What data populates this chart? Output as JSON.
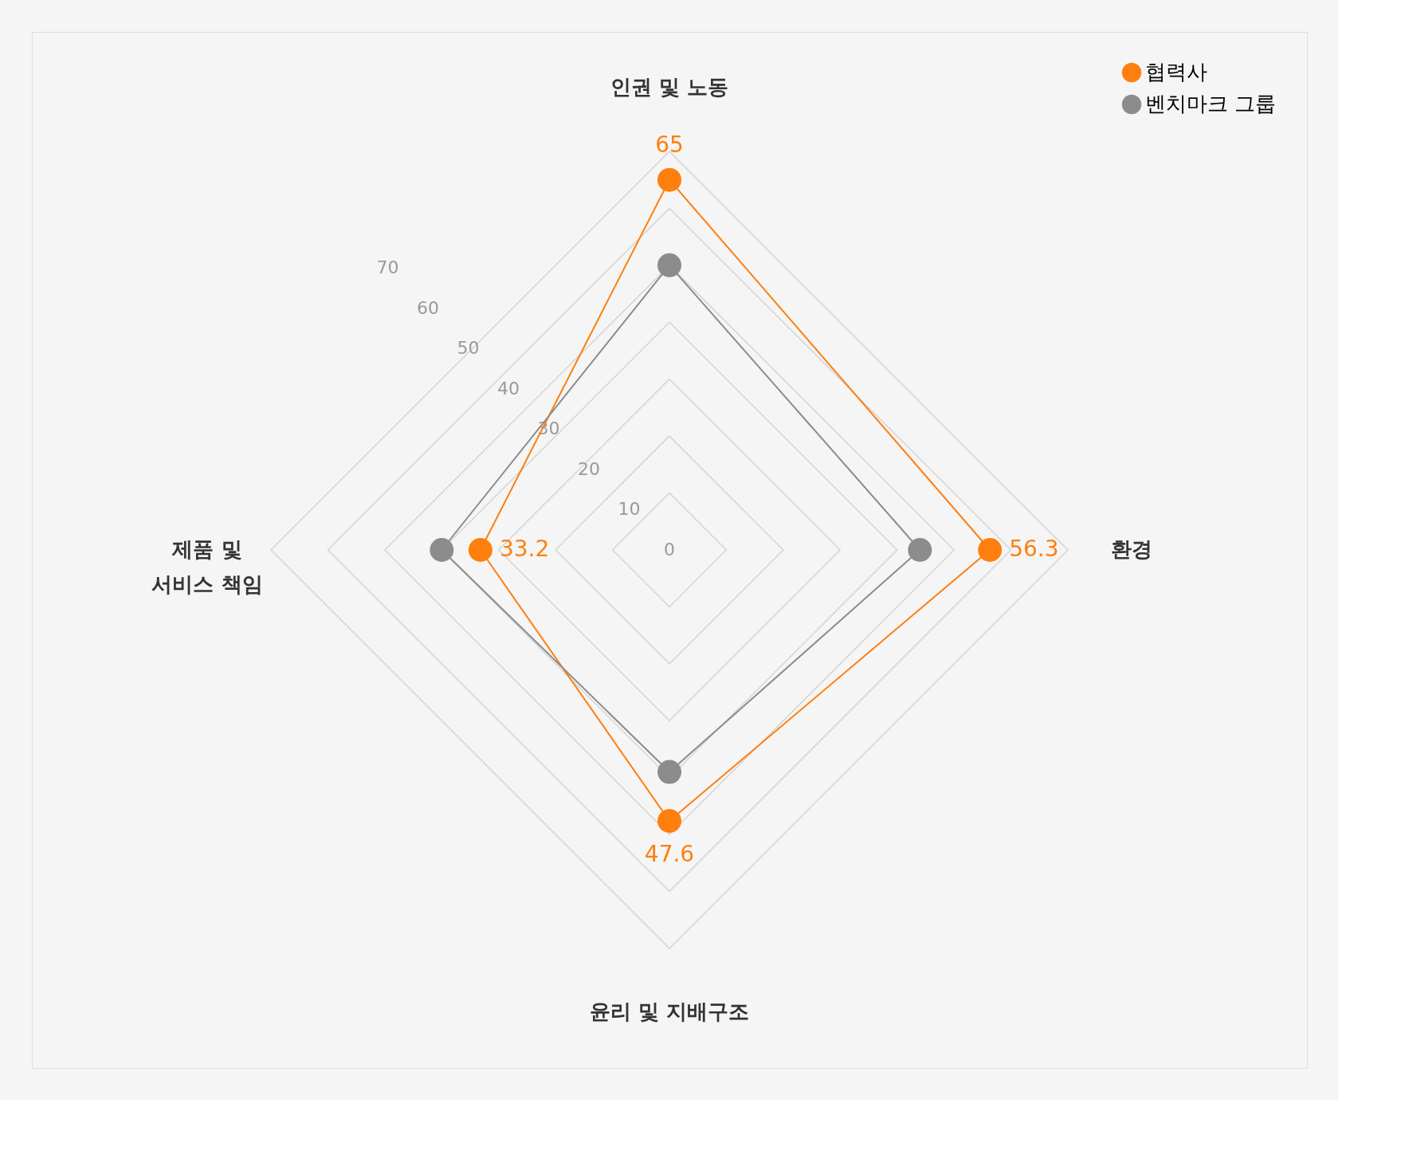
{
  "chart_data": {
    "type": "radar",
    "categories": [
      "인권 및 노동",
      "환경",
      "윤리 및 지배구조",
      "제품 및\n서비스 책임"
    ],
    "series": [
      {
        "name": "협력사",
        "color": "#ff7f0e",
        "values": [
          65,
          56.3,
          47.6,
          33.2
        ],
        "value_labels": [
          "65",
          "56.3",
          "47.6",
          "33.2"
        ]
      },
      {
        "name": "벤치마크 그룹",
        "color": "#8c8c8c",
        "values": [
          50,
          44,
          39,
          40
        ]
      }
    ],
    "ylim": [
      0,
      70
    ],
    "yticks": [
      0,
      10,
      20,
      30,
      40,
      50,
      60,
      70
    ],
    "marker": "circle",
    "legend": "top right",
    "grid": true
  }
}
